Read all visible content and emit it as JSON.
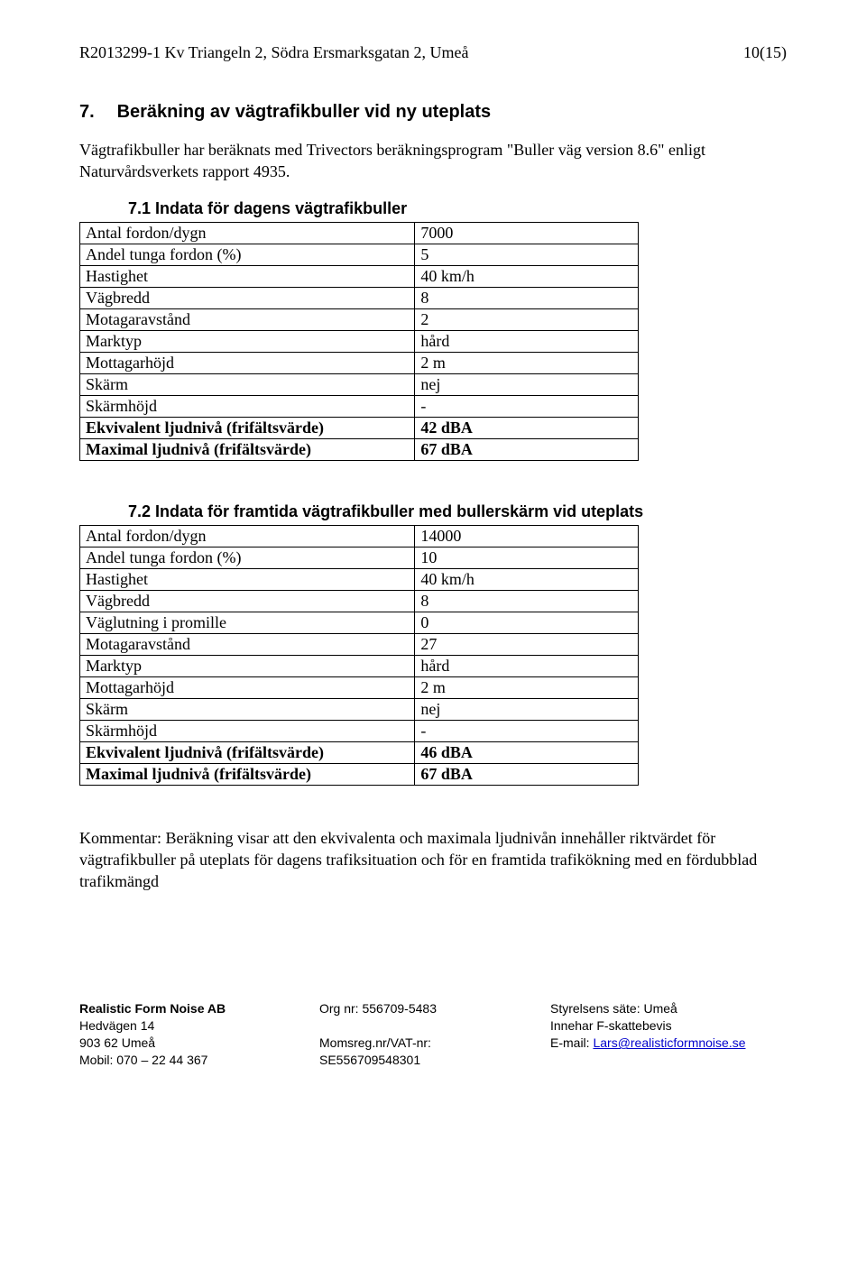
{
  "header": {
    "doc_ref": "R2013299-1 Kv Triangeln 2, Södra Ersmarksgatan 2, Umeå",
    "page_counter": "10(15)"
  },
  "section7": {
    "num": "7.",
    "title": "Beräkning av vägtrafikbuller vid ny uteplats",
    "intro": "Vägtrafikbuller har beräknats med Trivectors beräkningsprogram \"Buller väg version 8.6\" enligt Naturvårdsverkets rapport 4935."
  },
  "sub71": {
    "num": "7.1",
    "title": "Indata för dagens vägtrafikbuller",
    "rows": [
      {
        "l": "Antal fordon/dygn",
        "v": "7000"
      },
      {
        "l": "Andel tunga fordon (%)",
        "v": "5"
      },
      {
        "l": "Hastighet",
        "v": "40 km/h"
      },
      {
        "l": "Vägbredd",
        "v": "8"
      },
      {
        "l": "Motagaravstånd",
        "v": "2"
      },
      {
        "l": "Marktyp",
        "v": "hård"
      },
      {
        "l": "Mottagarhöjd",
        "v": "2 m"
      },
      {
        "l": "Skärm",
        "v": "nej"
      },
      {
        "l": "Skärmhöjd",
        "v": "-"
      },
      {
        "l": "Ekvivalent ljudnivå (frifältsvärde)",
        "v": "42 dBA",
        "bold": true
      },
      {
        "l": "Maximal ljudnivå (frifältsvärde)",
        "v": "67 dBA",
        "bold": true
      }
    ]
  },
  "sub72": {
    "num": "7.2",
    "title": "Indata för framtida vägtrafikbuller med bullerskärm vid uteplats",
    "rows": [
      {
        "l": "Antal fordon/dygn",
        "v": "14000"
      },
      {
        "l": "Andel tunga fordon (%)",
        "v": "10"
      },
      {
        "l": "Hastighet",
        "v": "40 km/h"
      },
      {
        "l": "Vägbredd",
        "v": "8"
      },
      {
        "l": "Väglutning i promille",
        "v": "0"
      },
      {
        "l": "Motagaravstånd",
        "v": "27"
      },
      {
        "l": "Marktyp",
        "v": "hård"
      },
      {
        "l": "Mottagarhöjd",
        "v": "2 m"
      },
      {
        "l": "Skärm",
        "v": "nej"
      },
      {
        "l": "Skärmhöjd",
        "v": "-"
      },
      {
        "l": "Ekvivalent ljudnivå (frifältsvärde)",
        "v": "46 dBA",
        "bold": true
      },
      {
        "l": "Maximal ljudnivå (frifältsvärde)",
        "v": "67 dBA",
        "bold": true
      }
    ]
  },
  "comment": "Kommentar: Beräkning visar att den ekvivalenta och maximala ljudnivån innehåller riktvärdet för vägtrafikbuller på uteplats för dagens trafiksituation och för en framtida trafikökning med en fördubblad trafikmängd",
  "footer": {
    "company": "Realistic Form Noise AB",
    "addr1": "Hedvägen 14",
    "addr2": "903 62 Umeå",
    "mobile": "Mobil: 070 – 22 44 367",
    "org": "Org nr: 556709-5483",
    "vat_label": "Momsreg.nr/VAT-nr:",
    "vat": "SE556709548301",
    "seat": "Styrelsens säte: Umeå",
    "fskatt": "Innehar F-skattebevis",
    "email_label": "E-mail: ",
    "email": "Lars@realisticformnoise.se"
  }
}
